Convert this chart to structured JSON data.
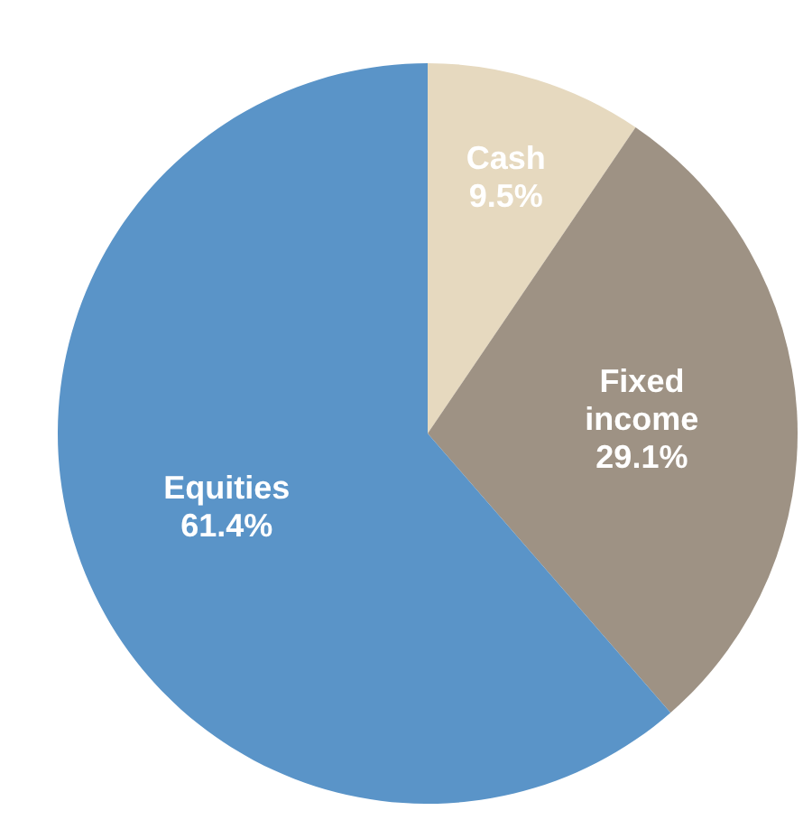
{
  "chart_data": {
    "type": "pie",
    "categories": [
      "Cash",
      "Fixed income",
      "Equities"
    ],
    "values": [
      9.5,
      29.1,
      61.4
    ],
    "colors": [
      "#e6d9bf",
      "#9e9284",
      "#5a94c8"
    ],
    "value_labels": [
      "9.5%",
      "29.1%",
      "61.4%"
    ],
    "legend": false
  }
}
